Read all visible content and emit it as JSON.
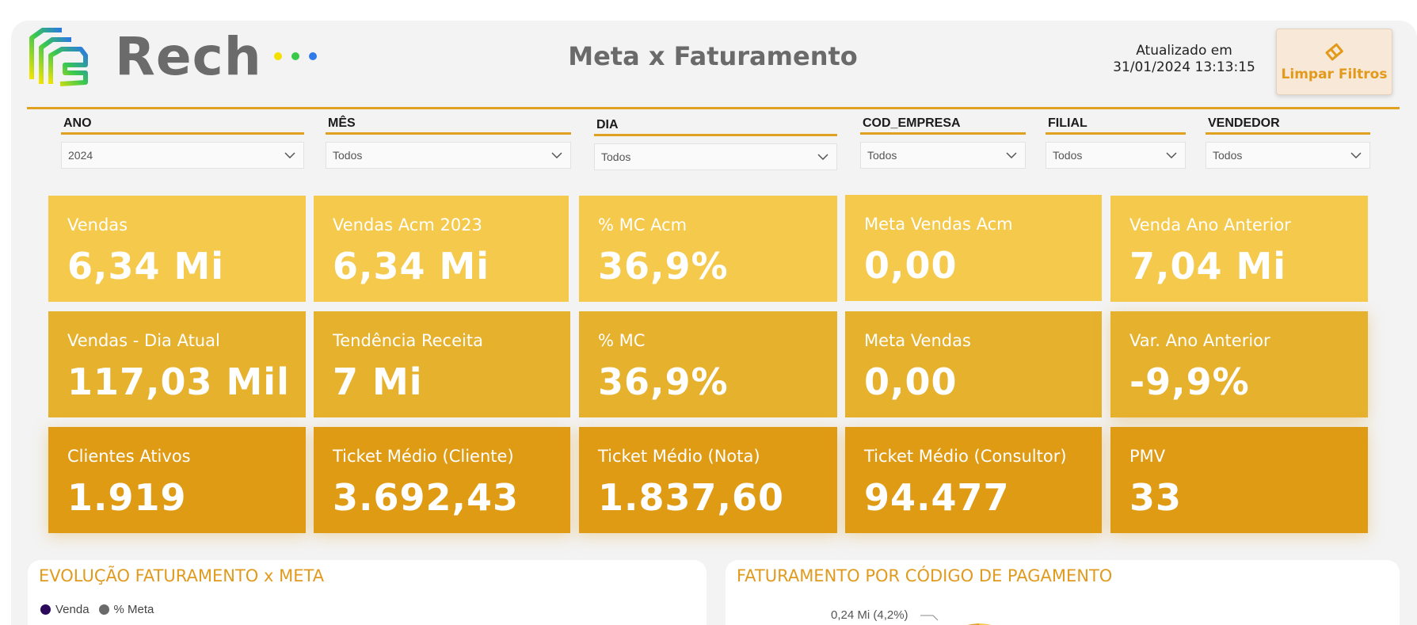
{
  "brand": {
    "name": "Rech",
    "dot_colors": [
      "#f4e000",
      "#38c94a",
      "#2f7be8"
    ]
  },
  "header": {
    "title": "Meta x Faturamento",
    "updated_label": "Atualizado em",
    "updated_value": "31/01/2024 13:13:15",
    "clear_filters_label": "Limpar Filtros"
  },
  "filters": [
    {
      "label": "ANO",
      "value": "2024"
    },
    {
      "label": "MÊS",
      "value": "Todos"
    },
    {
      "label": "DIA",
      "value": "Todos"
    },
    {
      "label": "COD_EMPRESA",
      "value": "Todos"
    },
    {
      "label": "FILIAL",
      "value": "Todos"
    },
    {
      "label": "VENDEDOR",
      "value": "Todos"
    }
  ],
  "kpis": [
    {
      "label": "Vendas",
      "value": "6,34 Mi"
    },
    {
      "label": "Vendas Acm 2023",
      "value": "6,34 Mi"
    },
    {
      "label": "% MC Acm",
      "value": "36,9%"
    },
    {
      "label": "Meta Vendas Acm",
      "value": "0,00"
    },
    {
      "label": "Venda Ano Anterior",
      "value": "7,04 Mi"
    },
    {
      "label": "Vendas - Dia Atual",
      "value": "117,03 Mil"
    },
    {
      "label": "Tendência Receita",
      "value": "7 Mi"
    },
    {
      "label": "% MC",
      "value": "36,9%"
    },
    {
      "label": "Meta Vendas",
      "value": "0,00"
    },
    {
      "label": "Var. Ano Anterior",
      "value": "-9,9%"
    },
    {
      "label": "Clientes Ativos",
      "value": "1.919"
    },
    {
      "label": "Ticket Médio (Cliente)",
      "value": "3.692,43"
    },
    {
      "label": "Ticket Médio (Nota)",
      "value": "1.837,60"
    },
    {
      "label": "Ticket Médio (Consultor)",
      "value": "94.477"
    },
    {
      "label": "PMV",
      "value": "33"
    }
  ],
  "colors": {
    "accent": "#e0a020",
    "kpi_row1": "#f5c94b",
    "kpi_row2": "#e6b12d",
    "kpi_row3": "#e09b15"
  },
  "panels": {
    "evolucao": {
      "title": "EVOLUÇÃO FATURAMENTO x META",
      "legend": [
        {
          "name": "Venda",
          "color": "#2b0a5c"
        },
        {
          "name": "% Meta",
          "color": "#6a6a6a"
        }
      ]
    },
    "pagamento": {
      "title": "FATURAMENTO POR CÓDIGO DE PAGAMENTO",
      "slice_label": "0,24 Mi (4,2%)"
    }
  }
}
